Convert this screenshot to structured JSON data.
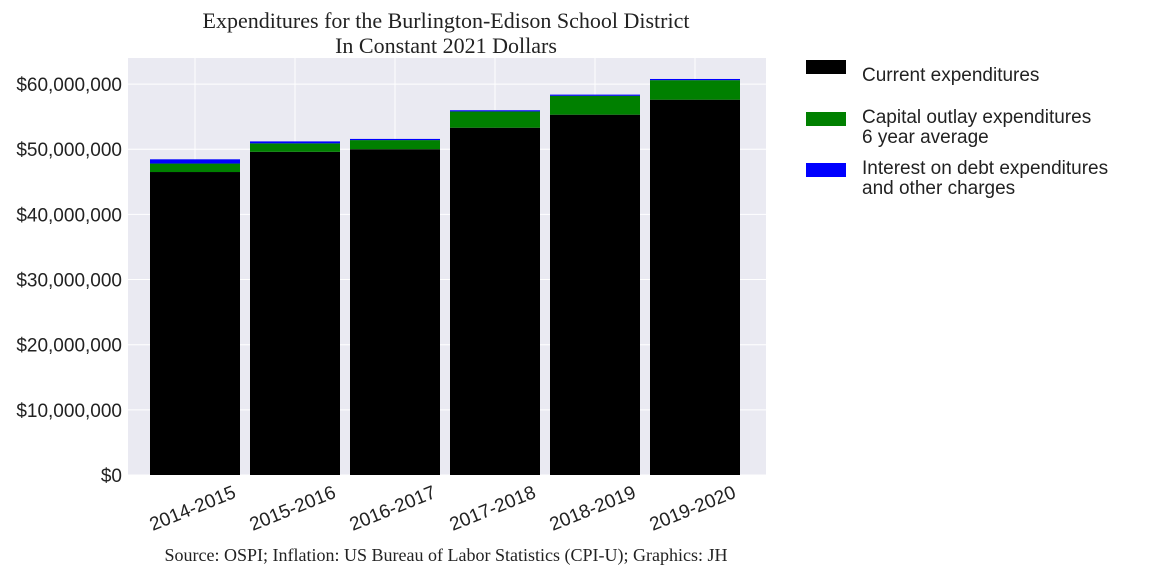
{
  "chart_data": {
    "type": "bar",
    "stacked": true,
    "title": "Expenditures for the Burlington-Edison School District",
    "subtitle": "In Constant 2021 Dollars",
    "source": "Source: OSPI; Inflation: US Bureau of Labor Statistics (CPI-U); Graphics: JH",
    "categories": [
      "2014-2015",
      "2015-2016",
      "2016-2017",
      "2017-2018",
      "2018-2019",
      "2019-2020"
    ],
    "series": [
      {
        "name_lines": [
          "Current expenditures"
        ],
        "color": "#000000",
        "values": [
          46500000,
          49600000,
          50000000,
          53300000,
          55300000,
          57600000
        ]
      },
      {
        "name_lines": [
          "Capital outlay expenditures",
          "6 year average"
        ],
        "color": "#008000",
        "values": [
          1300000,
          1300000,
          1400000,
          2500000,
          2900000,
          3000000
        ]
      },
      {
        "name_lines": [
          "Interest on debt expenditures",
          "and other charges"
        ],
        "color": "#0000ff",
        "values": [
          650000,
          300000,
          180000,
          180000,
          180000,
          180000
        ]
      }
    ],
    "ylim": [
      0,
      64000000
    ],
    "yticks": [
      0,
      10000000,
      20000000,
      30000000,
      40000000,
      50000000,
      60000000
    ],
    "ytick_labels": [
      "$0",
      "$10,000,000",
      "$20,000,000",
      "$30,000,000",
      "$40,000,000",
      "$50,000,000",
      "$60,000,000"
    ],
    "grid": true,
    "legend_position": "outside-right",
    "background": "#eaeaf2"
  }
}
